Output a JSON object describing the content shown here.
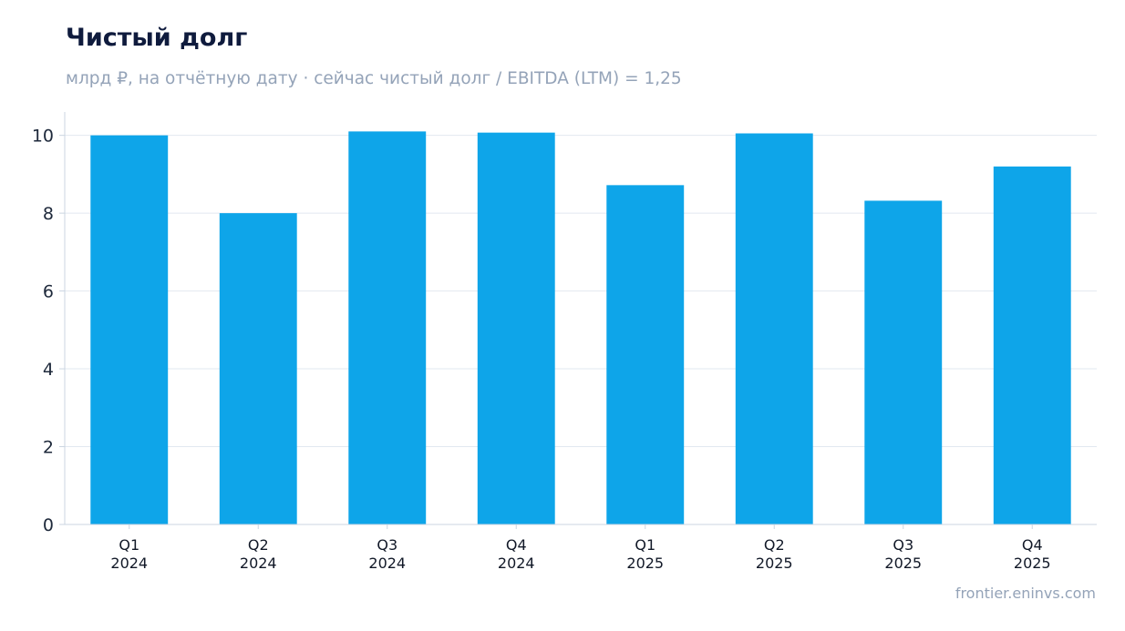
{
  "chart_data": {
    "type": "bar",
    "title": "Чистый долг",
    "subtitle": "млрд ₽, на отчётную дату · сейчас чистый долг / EBITDA (LTM) = 1,25",
    "categories": [
      [
        "Q1",
        "2024"
      ],
      [
        "Q2",
        "2024"
      ],
      [
        "Q3",
        "2024"
      ],
      [
        "Q4",
        "2024"
      ],
      [
        "Q1",
        "2025"
      ],
      [
        "Q2",
        "2025"
      ],
      [
        "Q3",
        "2025"
      ],
      [
        "Q4",
        "2025"
      ]
    ],
    "values": [
      10.0,
      8.0,
      10.1,
      10.07,
      8.72,
      10.05,
      8.32,
      9.2
    ],
    "ylim": [
      0,
      10.6
    ],
    "yticks": [
      0,
      2,
      4,
      6,
      8,
      10
    ],
    "grid": true,
    "legend": "none",
    "bar_color": "#0ea5e9",
    "grid_color": "#e2e8f0",
    "axis_color": "#cbd5e1"
  },
  "source": "frontier.eninvs.com"
}
